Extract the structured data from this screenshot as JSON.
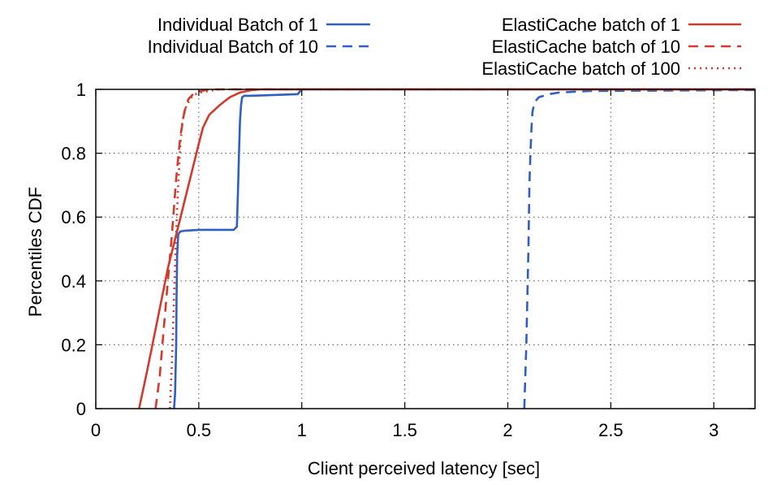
{
  "chart_data": {
    "type": "line",
    "xlabel": "Client perceived latency [sec]",
    "ylabel": "Percentiles CDF",
    "xlim": [
      0,
      3.2
    ],
    "ylim": [
      0,
      1
    ],
    "xticks": [
      "0",
      "0.5",
      "1",
      "1.5",
      "2",
      "2.5",
      "3"
    ],
    "yticks": [
      "0",
      "0.2",
      "0.4",
      "0.6",
      "0.8",
      "1"
    ],
    "grid": true,
    "legend_position": "top",
    "series": [
      {
        "name": "Individual Batch of 1",
        "color": "#2f5fc2",
        "style": "solid",
        "x": [
          0.38,
          0.385,
          0.39,
          0.392,
          0.395,
          0.398,
          0.4,
          0.41,
          0.43,
          0.5,
          0.6,
          0.67,
          0.685,
          0.69,
          0.695,
          0.7,
          0.705,
          0.71,
          0.72,
          0.75,
          0.85,
          0.98,
          1.0,
          3.2
        ],
        "y": [
          0.0,
          0.05,
          0.2,
          0.35,
          0.48,
          0.52,
          0.545,
          0.555,
          0.557,
          0.56,
          0.56,
          0.56,
          0.57,
          0.68,
          0.8,
          0.9,
          0.95,
          0.975,
          0.98,
          0.98,
          0.982,
          0.985,
          1.0,
          1.0
        ]
      },
      {
        "name": "Individual Batch  of 10",
        "color": "#2f5fc2",
        "style": "dashed",
        "x": [
          2.08,
          2.09,
          2.1,
          2.105,
          2.11,
          2.115,
          2.12,
          2.13,
          2.15,
          2.2,
          2.25,
          2.4,
          3.2
        ],
        "y": [
          0.0,
          0.2,
          0.5,
          0.7,
          0.8,
          0.88,
          0.93,
          0.96,
          0.975,
          0.985,
          0.99,
          0.995,
          0.998
        ]
      },
      {
        "name": "ElastiCache batch of 1",
        "color": "#d33a2c",
        "style": "solid",
        "x": [
          0.21,
          0.25,
          0.3,
          0.35,
          0.4,
          0.45,
          0.5,
          0.52,
          0.55,
          0.6,
          0.65,
          0.7,
          0.75,
          0.8,
          3.2
        ],
        "y": [
          0.0,
          0.12,
          0.28,
          0.44,
          0.57,
          0.7,
          0.83,
          0.88,
          0.92,
          0.95,
          0.975,
          0.99,
          0.997,
          1.0,
          1.0
        ]
      },
      {
        "name": "ElastiCache batch of 10",
        "color": "#d33a2c",
        "style": "dashed",
        "x": [
          0.29,
          0.31,
          0.33,
          0.35,
          0.37,
          0.39,
          0.41,
          0.43,
          0.45,
          0.48,
          0.55,
          3.2
        ],
        "y": [
          0.0,
          0.1,
          0.25,
          0.4,
          0.55,
          0.72,
          0.85,
          0.93,
          0.97,
          0.99,
          1.0,
          1.0
        ]
      },
      {
        "name": "ElastiCache batch of 100",
        "color": "#d33a2c",
        "style": "dotted",
        "x": [
          0.36,
          0.37,
          0.38,
          0.39,
          0.4,
          0.41,
          0.42,
          0.44,
          0.47,
          0.5,
          0.6,
          3.2
        ],
        "y": [
          0.0,
          0.15,
          0.35,
          0.55,
          0.7,
          0.82,
          0.9,
          0.95,
          0.98,
          0.99,
          1.0,
          1.0
        ]
      }
    ]
  }
}
